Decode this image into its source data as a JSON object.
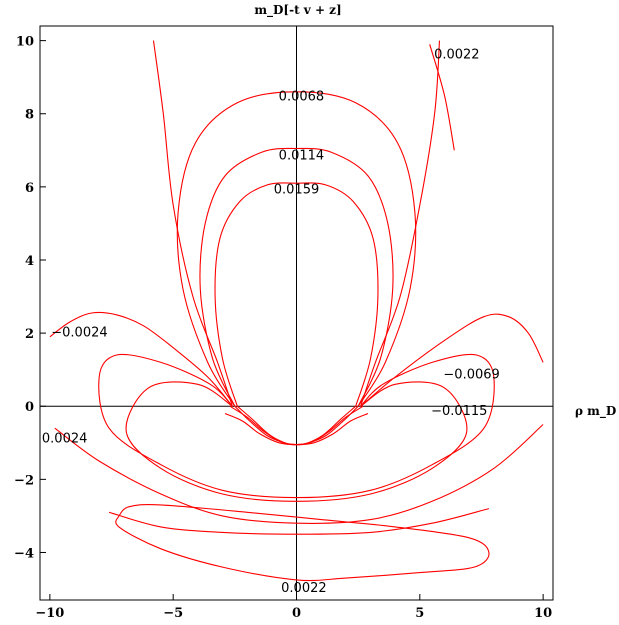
{
  "chart_data": {
    "type": "line",
    "title": "m_D[-t v + z]",
    "xlabel": "ρ m_D",
    "ylabel": "m_D[-t v + z]",
    "xlim": [
      -10.4,
      10.4
    ],
    "ylim": [
      -5.3,
      10.4
    ],
    "x_ticks": [
      -10,
      -5,
      0,
      5,
      10
    ],
    "x_tick_labels": [
      "-10",
      "-5",
      "0",
      "5",
      "10"
    ],
    "y_ticks": [
      -4,
      -2,
      0,
      2,
      4,
      6,
      8,
      10
    ],
    "y_tick_labels": [
      "-4",
      "-2",
      "0",
      "2",
      "4",
      "6",
      "8",
      "10"
    ],
    "grid": false,
    "color": "#ff0000",
    "contour_labels": [
      {
        "text": "0.0022",
        "x": 6.5,
        "y": 9.65
      },
      {
        "text": "0.0068",
        "x": 0.2,
        "y": 8.5
      },
      {
        "text": "0.0114",
        "x": 0.2,
        "y": 6.88
      },
      {
        "text": "0.0159",
        "x": 0.0,
        "y": 5.95
      },
      {
        "text": "-0.0024",
        "x": -8.8,
        "y": 2.05
      },
      {
        "text": "-0.0069",
        "x": 7.1,
        "y": 0.9
      },
      {
        "text": "-0.0115",
        "x": 6.6,
        "y": -0.1
      },
      {
        "text": "0.0024",
        "x": -9.4,
        "y": -0.85
      },
      {
        "text": "0.0022",
        "x": 0.3,
        "y": -4.95
      }
    ],
    "series": [
      {
        "values": [
          [
            -2.6,
            0
          ],
          [
            -3.2,
            1.2
          ],
          [
            -4.2,
            3.0
          ],
          [
            -5.0,
            5.5
          ],
          [
            -5.4,
            8.0
          ],
          [
            -5.8,
            10.0
          ]
        ]
      },
      {
        "values": [
          [
            2.6,
            0
          ],
          [
            3.2,
            1.2
          ],
          [
            4.2,
            3.0
          ],
          [
            5.0,
            5.5
          ],
          [
            5.6,
            8.0
          ],
          [
            5.8,
            10.0
          ]
        ]
      },
      {
        "values": [
          [
            -2.5,
            0
          ],
          [
            -3.6,
            1.2
          ],
          [
            -4.6,
            3.2
          ],
          [
            -4.8,
            5.3
          ],
          [
            -4.1,
            7.2
          ],
          [
            -2.4,
            8.3
          ],
          [
            0,
            8.6
          ],
          [
            2.4,
            8.3
          ],
          [
            4.1,
            7.2
          ],
          [
            4.8,
            5.3
          ],
          [
            4.6,
            3.2
          ],
          [
            3.6,
            1.2
          ],
          [
            2.5,
            0
          ]
        ]
      },
      {
        "values": [
          [
            -2.5,
            0
          ],
          [
            -3.4,
            1.3
          ],
          [
            -3.9,
            3.2
          ],
          [
            -3.7,
            5.0
          ],
          [
            -2.9,
            6.3
          ],
          [
            -1.4,
            6.95
          ],
          [
            0,
            7.05
          ],
          [
            1.4,
            6.95
          ],
          [
            2.9,
            6.3
          ],
          [
            3.7,
            5.0
          ],
          [
            3.9,
            3.2
          ],
          [
            3.4,
            1.3
          ],
          [
            2.5,
            0
          ]
        ]
      },
      {
        "values": [
          [
            -2.4,
            0
          ],
          [
            -3.0,
            1.3
          ],
          [
            -3.3,
            3.0
          ],
          [
            -3.1,
            4.6
          ],
          [
            -2.3,
            5.6
          ],
          [
            -1.2,
            6.05
          ],
          [
            0,
            6.1
          ],
          [
            1.2,
            6.05
          ],
          [
            2.3,
            5.6
          ],
          [
            3.1,
            4.6
          ],
          [
            3.3,
            3.0
          ],
          [
            3.0,
            1.3
          ],
          [
            2.4,
            0
          ]
        ]
      },
      {
        "values": [
          [
            -10,
            1.9
          ],
          [
            -9.2,
            2.3
          ],
          [
            -8.3,
            2.55
          ],
          [
            -7.3,
            2.5
          ],
          [
            -6.2,
            2.2
          ],
          [
            -5.0,
            1.6
          ],
          [
            -3.6,
            0.8
          ],
          [
            -2.6,
            0
          ]
        ]
      },
      {
        "values": [
          [
            -2.6,
            0
          ],
          [
            -3.5,
            0.6
          ],
          [
            -5.5,
            1.2
          ],
          [
            -7.3,
            1.4
          ],
          [
            -8.0,
            0.8
          ],
          [
            -7.6,
            -0.6
          ],
          [
            -5.5,
            -1.6
          ],
          [
            -3,
            -2.3
          ],
          [
            0,
            -2.5
          ],
          [
            3,
            -2.3
          ],
          [
            5.5,
            -1.6
          ],
          [
            7.6,
            -0.6
          ],
          [
            8.0,
            0.8
          ],
          [
            7.3,
            1.4
          ],
          [
            5.5,
            1.2
          ],
          [
            3.5,
            0.6
          ],
          [
            2.6,
            0
          ]
        ]
      },
      {
        "values": [
          [
            -2.6,
            0
          ],
          [
            -4.0,
            0.6
          ],
          [
            -6.0,
            0.5
          ],
          [
            -6.9,
            -0.7
          ],
          [
            -5.5,
            -1.7
          ],
          [
            -3,
            -2.4
          ],
          [
            0,
            -2.6
          ],
          [
            3,
            -2.4
          ],
          [
            5.5,
            -1.7
          ],
          [
            6.9,
            -0.7
          ],
          [
            6.0,
            0.5
          ],
          [
            4.0,
            0.6
          ],
          [
            2.6,
            0
          ]
        ]
      },
      {
        "values": [
          [
            -9.8,
            -0.6
          ],
          [
            -8.0,
            -1.5
          ],
          [
            -5.5,
            -2.4
          ],
          [
            -3,
            -3.0
          ],
          [
            0,
            -3.2
          ],
          [
            3,
            -3.1
          ],
          [
            5.5,
            -2.6
          ],
          [
            8.0,
            -1.7
          ],
          [
            10,
            -0.5
          ]
        ]
      },
      {
        "values": [
          [
            2.6,
            0
          ],
          [
            4.0,
            0.8
          ],
          [
            6.0,
            1.8
          ],
          [
            7.6,
            2.45
          ],
          [
            8.6,
            2.45
          ],
          [
            9.4,
            2.0
          ],
          [
            10,
            1.2
          ]
        ]
      },
      {
        "values": [
          [
            -7.6,
            -2.9
          ],
          [
            -5.5,
            -3.3
          ],
          [
            -3,
            -3.45
          ],
          [
            0,
            -3.5
          ],
          [
            3,
            -3.45
          ],
          [
            5.5,
            -3.2
          ],
          [
            7.8,
            -2.8
          ]
        ]
      },
      {
        "values": [
          [
            -7.2,
            -3.0
          ],
          [
            -6.8,
            -2.75
          ],
          [
            -5.5,
            -2.7
          ],
          [
            -2,
            -2.9
          ],
          [
            1,
            -3.1
          ],
          [
            4,
            -3.3
          ],
          [
            7,
            -3.6
          ],
          [
            7.8,
            -4.0
          ],
          [
            7.2,
            -4.4
          ],
          [
            5,
            -4.55
          ],
          [
            2,
            -4.7
          ],
          [
            0,
            -4.75
          ],
          [
            -3,
            -4.4
          ],
          [
            -5.5,
            -3.9
          ],
          [
            -7.2,
            -3.3
          ],
          [
            -7.2,
            -3.0
          ]
        ]
      },
      {
        "values": [
          [
            -2.9,
            -0.2
          ],
          [
            -2.2,
            -0.4
          ],
          [
            -1.5,
            -0.75
          ],
          [
            -0.7,
            -1.0
          ],
          [
            0,
            -1.05
          ],
          [
            0.7,
            -1.0
          ],
          [
            1.5,
            -0.75
          ],
          [
            2.2,
            -0.4
          ],
          [
            2.9,
            -0.2
          ]
        ]
      },
      {
        "values": [
          [
            -2.7,
            0
          ],
          [
            -2.0,
            -0.3
          ],
          [
            -1.3,
            -0.7
          ],
          [
            -0.6,
            -0.98
          ],
          [
            0,
            -1.05
          ],
          [
            0.6,
            -0.98
          ],
          [
            1.3,
            -0.7
          ],
          [
            2.0,
            -0.3
          ],
          [
            2.7,
            0
          ]
        ]
      },
      {
        "values": [
          [
            -2.5,
            0
          ],
          [
            -1.9,
            -0.4
          ],
          [
            -1.2,
            -0.8
          ],
          [
            -0.5,
            -1.0
          ],
          [
            0,
            -1.05
          ],
          [
            0.5,
            -1.0
          ],
          [
            1.2,
            -0.8
          ],
          [
            1.9,
            -0.4
          ],
          [
            2.5,
            0
          ]
        ]
      },
      {
        "values": [
          [
            -2.4,
            0
          ],
          [
            -1.8,
            -0.35
          ],
          [
            -1.1,
            -0.78
          ],
          [
            -0.4,
            -1.02
          ],
          [
            0,
            -1.05
          ],
          [
            0.4,
            -1.02
          ],
          [
            1.1,
            -0.78
          ],
          [
            1.8,
            -0.35
          ],
          [
            2.4,
            0
          ]
        ]
      },
      {
        "values": [
          [
            5.4,
            9.9
          ],
          [
            6.0,
            8.5
          ],
          [
            6.4,
            7.0
          ]
        ]
      }
    ]
  }
}
